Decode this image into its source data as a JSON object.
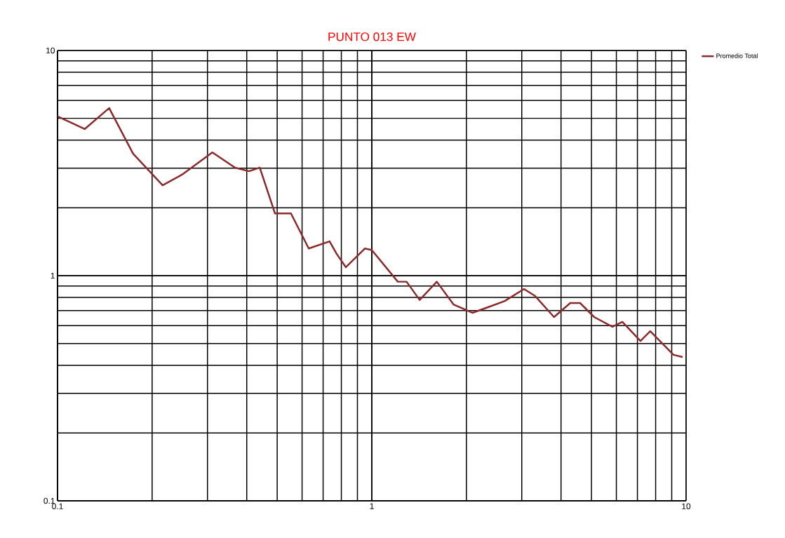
{
  "chart_data": {
    "type": "line",
    "title": "PUNTO 013 EW",
    "log": "xy",
    "grid": true,
    "legend": "right",
    "xlim": [
      0.1,
      10
    ],
    "ylim": [
      0.1,
      10
    ],
    "xticks": [
      0.1,
      1,
      10
    ],
    "yticks": [
      0.1,
      1,
      10
    ],
    "series": [
      {
        "name": "Promedio Total",
        "color": "#8b2a2a",
        "x": [
          0.1,
          0.122,
          0.146,
          0.174,
          0.216,
          0.249,
          0.311,
          0.367,
          0.407,
          0.44,
          0.492,
          0.553,
          0.63,
          0.734,
          0.773,
          0.827,
          0.95,
          1.0,
          1.21,
          1.29,
          1.42,
          1.61,
          1.82,
          2.09,
          2.31,
          2.65,
          3.05,
          3.31,
          3.8,
          4.28,
          4.6,
          5.1,
          5.83,
          6.27,
          7.16,
          7.69,
          9.12,
          9.75
        ],
        "values": [
          5.1,
          4.48,
          5.55,
          3.48,
          2.52,
          2.81,
          3.53,
          3.02,
          2.91,
          3.02,
          1.89,
          1.89,
          1.32,
          1.42,
          1.25,
          1.09,
          1.32,
          1.3,
          0.94,
          0.94,
          0.78,
          0.94,
          0.745,
          0.684,
          0.719,
          0.772,
          0.873,
          0.812,
          0.655,
          0.756,
          0.756,
          0.655,
          0.593,
          0.623,
          0.513,
          0.567,
          0.445,
          0.435
        ]
      }
    ]
  }
}
